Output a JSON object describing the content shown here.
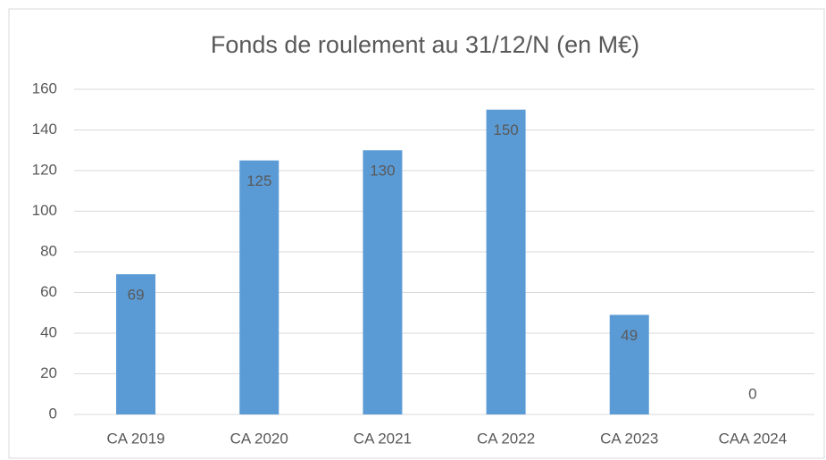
{
  "chart_data": {
    "type": "bar",
    "title": "Fonds de roulement au 31/12/N (en M€)",
    "categories": [
      "CA 2019",
      "CA 2020",
      "CA 2021",
      "CA 2022",
      "CA 2023",
      "CAA 2024"
    ],
    "values": [
      69,
      125,
      130,
      150,
      49,
      0
    ],
    "color": "#5b9bd5",
    "ylim": [
      0,
      160
    ],
    "yticks": [
      0,
      20,
      40,
      60,
      80,
      100,
      120,
      140,
      160
    ],
    "grid": true
  }
}
